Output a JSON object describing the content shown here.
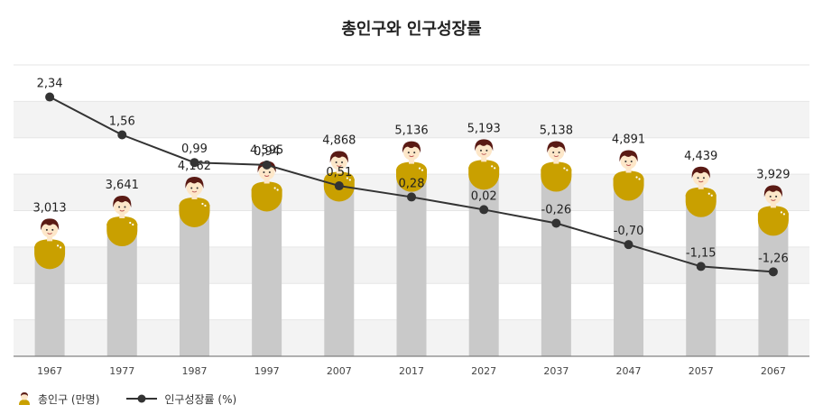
{
  "chart_data": {
    "type": "bar",
    "title": "총인구와 인구성장률",
    "categories": [
      "1967",
      "1977",
      "1987",
      "1997",
      "2007",
      "2017",
      "2027",
      "2037",
      "2047",
      "2057",
      "2067"
    ],
    "series": [
      {
        "name": "총인구 (만명)",
        "type": "bar",
        "values": [
          3013,
          3641,
          4162,
          4595,
          4868,
          5136,
          5193,
          5138,
          4891,
          4439,
          3929
        ],
        "labels": [
          "3,013",
          "3,641",
          "4,162",
          "4,595",
          "4,868",
          "5,136",
          "5,193",
          "5,138",
          "4,891",
          "4,439",
          "3,929"
        ]
      },
      {
        "name": "인구성장률 (%)",
        "type": "line",
        "values": [
          2.34,
          1.56,
          0.99,
          0.94,
          0.51,
          0.28,
          0.02,
          -0.26,
          -0.7,
          -1.15,
          -1.26
        ],
        "labels": [
          "2,34",
          "1,56",
          "0,99",
          "0,94",
          "0,51",
          "0,28",
          "0,02",
          "-0,26",
          "-0,70",
          "-1,15",
          "-1,26"
        ]
      }
    ],
    "ylim_bar": [
      0,
      8000
    ],
    "ylim_line": [
      -3,
      3
    ],
    "grid": true,
    "legend_position": "bottom-left",
    "colors": {
      "bar": "#c9c9c9",
      "line": "#333333",
      "shirt": "#c9a000",
      "hair": "#5a1a14",
      "skin": "#fde7c9",
      "band": "#f3f3f3"
    }
  }
}
